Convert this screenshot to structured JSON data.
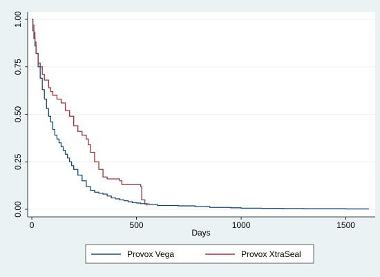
{
  "chart_data": {
    "type": "line",
    "chart_style": "step",
    "title": "",
    "xlabel": "Days",
    "ylabel": "",
    "xlim": [
      -20,
      1640
    ],
    "ylim": [
      -0.04,
      1.04
    ],
    "xticks": [
      0,
      500,
      1000,
      1500
    ],
    "xtick_labels": [
      "0",
      "500",
      "1000",
      "1500"
    ],
    "yticks": [
      0,
      0.25,
      0.5,
      0.75,
      1.0
    ],
    "ytick_labels": [
      "0.00",
      "0.25",
      "0.50",
      "0.75",
      "1.00"
    ],
    "grid": true,
    "legend_position": "bottom",
    "colors": {
      "background": "#eaf2f3",
      "plot_area": "#ffffff",
      "grid": "#eaf2f3",
      "series_vega": "#1a476f",
      "series_xtraseal": "#90353b"
    },
    "series": [
      {
        "name": "Provox Vega",
        "x": [
          0,
          5,
          10,
          15,
          20,
          30,
          40,
          50,
          60,
          70,
          80,
          90,
          100,
          110,
          120,
          130,
          140,
          150,
          160,
          170,
          180,
          190,
          200,
          220,
          240,
          260,
          280,
          300,
          320,
          340,
          360,
          380,
          400,
          420,
          440,
          460,
          480,
          500,
          520,
          540,
          560,
          600,
          700,
          780,
          850,
          950,
          1000,
          1100,
          1200,
          1300,
          1400,
          1500,
          1610
        ],
        "y": [
          1.0,
          0.94,
          0.9,
          0.86,
          0.82,
          0.75,
          0.69,
          0.63,
          0.58,
          0.53,
          0.49,
          0.46,
          0.42,
          0.39,
          0.37,
          0.35,
          0.33,
          0.31,
          0.29,
          0.27,
          0.25,
          0.23,
          0.21,
          0.18,
          0.15,
          0.12,
          0.1,
          0.09,
          0.085,
          0.08,
          0.07,
          0.06,
          0.055,
          0.05,
          0.045,
          0.04,
          0.035,
          0.033,
          0.03,
          0.028,
          0.025,
          0.02,
          0.018,
          0.015,
          0.01,
          0.008,
          0.006,
          0.005,
          0.004,
          0.003,
          0.003,
          0.002,
          0.002
        ]
      },
      {
        "name": "Provox XtraSeal",
        "x": [
          0,
          5,
          10,
          15,
          20,
          30,
          40,
          50,
          60,
          80,
          90,
          100,
          120,
          140,
          160,
          180,
          200,
          220,
          240,
          260,
          270,
          280,
          300,
          320,
          340,
          360,
          420,
          430,
          520,
          525,
          540,
          550
        ],
        "y": [
          1.0,
          0.97,
          0.93,
          0.88,
          0.82,
          0.77,
          0.75,
          0.71,
          0.68,
          0.64,
          0.62,
          0.6,
          0.58,
          0.56,
          0.52,
          0.49,
          0.44,
          0.41,
          0.39,
          0.37,
          0.34,
          0.3,
          0.25,
          0.21,
          0.17,
          0.16,
          0.15,
          0.13,
          0.12,
          0.05,
          0.03,
          0.02
        ]
      }
    ]
  }
}
